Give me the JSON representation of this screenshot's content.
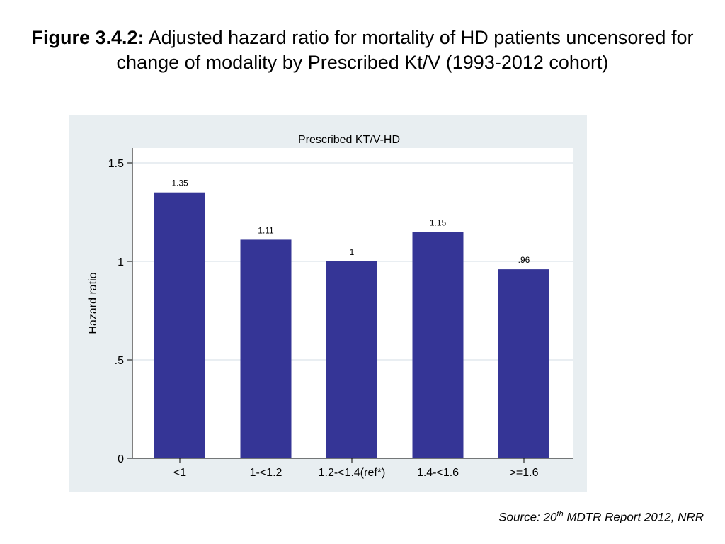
{
  "slide": {
    "title_bold": "Figure 3.4.2:",
    "title_rest": " Adjusted hazard ratio for mortality of HD patients uncensored for change of modality by Prescribed Kt/V (1993-2012 cohort)",
    "source_prefix": "Source: 20",
    "source_sup": "th",
    "source_suffix": " MDTR Report 2012, NRR"
  },
  "chart_data": {
    "type": "bar",
    "title": "Prescribed KT/V-HD",
    "xlabel": "",
    "ylabel": "Hazard ratio",
    "categories": [
      "<1",
      "1-<1.2",
      "1.2-<1.4(ref*)",
      "1.4-<1.6",
      ">=1.6"
    ],
    "values": [
      1.35,
      1.11,
      1,
      1.15,
      0.96
    ],
    "value_labels": [
      "1.35",
      "1.11",
      "1",
      "1.15",
      ".96"
    ],
    "ylim": [
      0,
      1.5
    ],
    "yticks": [
      0,
      0.5,
      1,
      1.5
    ],
    "ytick_labels": [
      "0",
      ".5",
      "1",
      "1.5"
    ],
    "grid": true,
    "legend": "none",
    "colors": {
      "bar": "#353596",
      "panel_background": "#e8eef1",
      "plot_background": "#ffffff",
      "gridline": "#e2e9ed"
    }
  }
}
